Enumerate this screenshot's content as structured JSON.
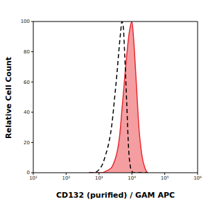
{
  "chart_data": {
    "type": "area",
    "x_label": "CD132 (purified) / GAM APC",
    "y_label": "Relative Cell Count",
    "log": "x",
    "grid": false,
    "xlim": [
      10,
      1000000
    ],
    "xticks": [
      {
        "value": 10,
        "label": "10¹"
      },
      {
        "value": 100,
        "label": "10²"
      },
      {
        "value": 1000,
        "label": "10³"
      },
      {
        "value": 10000,
        "label": "10⁴"
      },
      {
        "value": 100000,
        "label": "10⁵"
      },
      {
        "value": 1000000,
        "label": "10⁶"
      }
    ],
    "ylim": [
      0,
      100
    ],
    "yticks": [
      0,
      20,
      40,
      60,
      80,
      100
    ],
    "x": [
      500,
      700,
      1000,
      1300,
      1600,
      2000,
      2500,
      3000,
      3500,
      4000,
      4500,
      5000,
      5500,
      6000,
      7000,
      8000,
      9000,
      10000,
      11000,
      12000,
      14000,
      16000,
      20000,
      25000,
      30000
    ],
    "series": [
      {
        "type": "area",
        "color": "#e8292e",
        "line_style": "solid",
        "values": [
          0,
          0,
          0,
          0,
          1,
          2,
          4,
          8,
          13,
          20,
          30,
          42,
          52,
          62,
          78,
          90,
          97,
          100,
          92,
          80,
          55,
          33,
          12,
          3,
          0
        ]
      },
      {
        "type": "line",
        "color": "#000000",
        "line_style": "dashed",
        "values": [
          0,
          0,
          2,
          6,
          12,
          20,
          33,
          50,
          65,
          80,
          92,
          100,
          96,
          80,
          45,
          15,
          4,
          1,
          0,
          0,
          0,
          0,
          0,
          0,
          0
        ]
      }
    ]
  }
}
